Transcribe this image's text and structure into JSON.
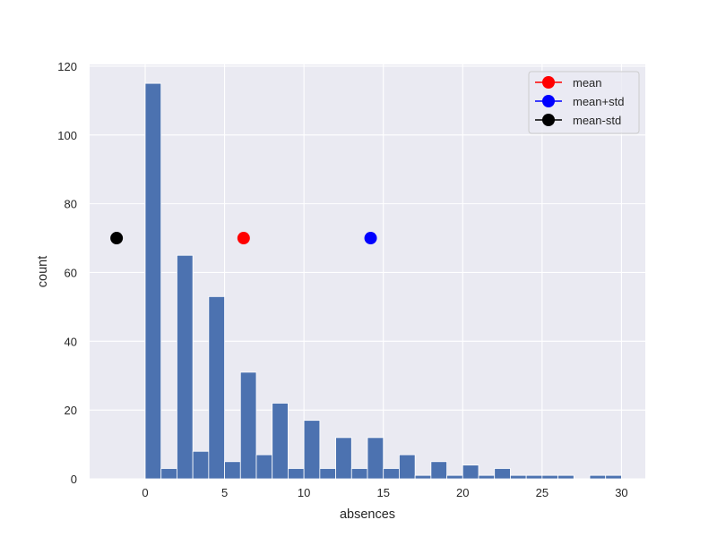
{
  "chart_data": {
    "type": "bar",
    "subtype": "histogram",
    "title": "",
    "xlabel": "absences",
    "ylabel": "count",
    "xlim": [
      -3.5,
      31.5
    ],
    "ylim": [
      0,
      120.5
    ],
    "xticks": [
      0,
      5,
      10,
      15,
      20,
      25,
      30
    ],
    "yticks": [
      0,
      20,
      40,
      60,
      80,
      100,
      120
    ],
    "grid": true,
    "bin_edges": [
      0,
      1,
      2,
      3,
      4,
      5,
      6,
      7,
      8,
      9,
      10,
      11,
      12,
      13,
      14,
      15,
      16,
      17,
      18,
      19,
      20,
      21,
      22,
      23,
      24,
      25,
      26,
      27,
      28,
      29,
      30
    ],
    "values": [
      115,
      3,
      65,
      8,
      53,
      5,
      31,
      7,
      22,
      3,
      17,
      3,
      12,
      3,
      12,
      3,
      7,
      1,
      5,
      1,
      4,
      1,
      3,
      1,
      1,
      1,
      1,
      0,
      1,
      1
    ],
    "bar_color": "#4c72b0",
    "markers": [
      {
        "name": "mean",
        "x": 6.2,
        "y": 70,
        "color": "#ff0000"
      },
      {
        "name": "mean+std",
        "x": 14.2,
        "y": 70,
        "color": "#0000ff"
      },
      {
        "name": "mean-std",
        "x": -1.8,
        "y": 70,
        "color": "#000000"
      }
    ],
    "legend": {
      "position": "upper right",
      "entries": [
        "mean",
        "mean+std",
        "mean-std"
      ]
    }
  },
  "axes": {
    "background": "#eaeaf2",
    "grid_color": "#ffffff"
  }
}
